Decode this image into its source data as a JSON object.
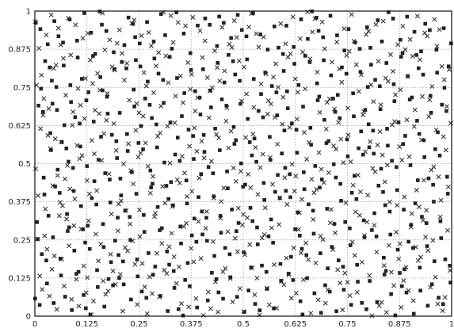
{
  "chart_data": {
    "type": "scatter",
    "title": "",
    "xlabel": "",
    "ylabel": "",
    "xlim": [
      0,
      1
    ],
    "ylim": [
      0,
      1
    ],
    "grid": true,
    "legend": "none",
    "x_ticks": [
      "0",
      "0.125",
      "0.25",
      "0.375",
      "0.5",
      "0.625",
      "0.75",
      "0.875",
      "1"
    ],
    "y_ticks": [
      "0",
      "0.125",
      "0.25",
      "0.375",
      "0.5",
      "0.625",
      "0.75",
      "0.875",
      "1"
    ],
    "series": [
      {
        "marker": "cross",
        "color": "#333333",
        "points_count": 520
      },
      {
        "marker": "square",
        "color": "#222222",
        "points_count": 520
      }
    ],
    "point_generation": "quasi-random (Halton-like) uniform on [0,1]x[0,1]"
  }
}
